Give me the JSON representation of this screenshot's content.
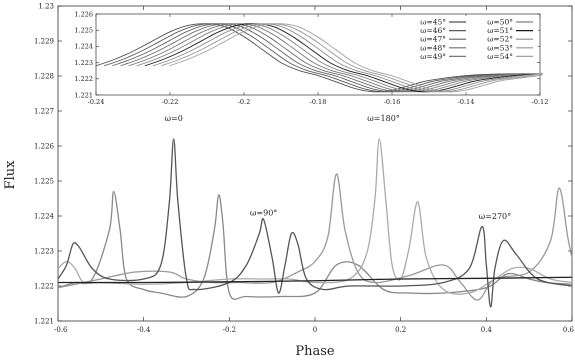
{
  "chart_data": [
    {
      "type": "line",
      "xlabel": "Phase",
      "ylabel": "Flux",
      "xlim": [
        -0.6,
        0.6
      ],
      "ylim": [
        1.221,
        1.23
      ],
      "xticks": [
        "-0.6",
        "-0.4",
        "-0.2",
        "0",
        "0.2",
        "0.4",
        "0.6"
      ],
      "yticks": [
        "1.221",
        "1.222",
        "1.223",
        "1.224",
        "1.225",
        "1.226",
        "1.227",
        "1.228",
        "1.229",
        "1.23"
      ],
      "grid": false,
      "annotations": [
        {
          "text": "ω=0",
          "x": -0.33,
          "y": 1.2266
        },
        {
          "text": "ω=90°",
          "x": -0.12,
          "y": 1.2239
        },
        {
          "text": "ω=180°",
          "x": 0.16,
          "y": 1.2266
        },
        {
          "text": "ω=270°",
          "x": 0.42,
          "y": 1.2238
        }
      ],
      "series": [
        {
          "color": "#888888",
          "values": [
            [
              -0.6,
              1.22195
            ],
            [
              -0.56,
              1.2221
            ],
            [
              -0.52,
              1.2222
            ],
            [
              -0.48,
              1.2236
            ],
            [
              -0.47,
              1.2247
            ],
            [
              -0.455,
              1.2236
            ],
            [
              -0.44,
              1.2222
            ],
            [
              -0.4,
              1.2219
            ],
            [
              -0.36,
              1.2218
            ],
            [
              -0.3,
              1.2217
            ],
            [
              -0.26,
              1.2222
            ],
            [
              -0.235,
              1.2236
            ],
            [
              -0.225,
              1.2246
            ],
            [
              -0.215,
              1.2238
            ],
            [
              -0.2,
              1.2218
            ],
            [
              -0.16,
              1.2217
            ],
            [
              -0.08,
              1.2217
            ],
            [
              0.0,
              1.2218
            ],
            [
              0.05,
              1.2226
            ],
            [
              0.1,
              1.2226
            ],
            [
              0.16,
              1.2219
            ],
            [
              0.22,
              1.2218
            ],
            [
              0.3,
              1.2218
            ],
            [
              0.4,
              1.22195
            ],
            [
              0.45,
              1.22235
            ],
            [
              0.5,
              1.2222
            ],
            [
              0.54,
              1.2221
            ],
            [
              0.6,
              1.22205
            ]
          ]
        },
        {
          "color": "#999999",
          "values": [
            [
              -0.6,
              1.22195
            ],
            [
              -0.5,
              1.2222
            ],
            [
              -0.42,
              1.2224
            ],
            [
              -0.34,
              1.2224
            ],
            [
              -0.3,
              1.2222
            ],
            [
              -0.24,
              1.2221
            ],
            [
              -0.18,
              1.2221
            ],
            [
              -0.1,
              1.2221
            ],
            [
              -0.04,
              1.2224
            ],
            [
              0.0,
              1.2227
            ],
            [
              0.03,
              1.2234
            ],
            [
              0.05,
              1.2252
            ],
            [
              0.07,
              1.2236
            ],
            [
              0.1,
              1.2224
            ],
            [
              0.14,
              1.2221
            ],
            [
              0.22,
              1.2223
            ],
            [
              0.3,
              1.2226
            ],
            [
              0.34,
              1.2221
            ],
            [
              0.38,
              1.2216
            ],
            [
              0.42,
              1.2222
            ],
            [
              0.5,
              1.2224
            ],
            [
              0.55,
              1.2233
            ],
            [
              0.57,
              1.2248
            ],
            [
              0.59,
              1.2234
            ],
            [
              0.6,
              1.2228
            ]
          ]
        },
        {
          "color": "#aaaaaa",
          "values": [
            [
              -0.6,
              1.2225
            ],
            [
              -0.58,
              1.2227
            ],
            [
              -0.56,
              1.2225
            ],
            [
              -0.54,
              1.2221
            ],
            [
              -0.5,
              1.2221
            ],
            [
              -0.4,
              1.22205
            ],
            [
              -0.3,
              1.2221
            ],
            [
              -0.2,
              1.2222
            ],
            [
              -0.12,
              1.2222
            ],
            [
              -0.06,
              1.2222
            ],
            [
              0.0,
              1.2221
            ],
            [
              0.08,
              1.2222
            ],
            [
              0.12,
              1.2229
            ],
            [
              0.14,
              1.2245
            ],
            [
              0.15,
              1.2262
            ],
            [
              0.165,
              1.2245
            ],
            [
              0.18,
              1.2226
            ],
            [
              0.2,
              1.2222
            ],
            [
              0.22,
              1.2231
            ],
            [
              0.24,
              1.2244
            ],
            [
              0.26,
              1.2228
            ],
            [
              0.3,
              1.2219
            ],
            [
              0.36,
              1.2218
            ],
            [
              0.42,
              1.2222
            ],
            [
              0.46,
              1.2225
            ],
            [
              0.5,
              1.2225
            ],
            [
              0.55,
              1.2222
            ],
            [
              0.6,
              1.2221
            ]
          ]
        },
        {
          "color": "#555555",
          "values": [
            [
              -0.6,
              1.2222
            ],
            [
              -0.58,
              1.2226
            ],
            [
              -0.565,
              1.2232
            ],
            [
              -0.55,
              1.2231
            ],
            [
              -0.52,
              1.2225
            ],
            [
              -0.48,
              1.2222
            ],
            [
              -0.4,
              1.2222
            ],
            [
              -0.36,
              1.2226
            ],
            [
              -0.34,
              1.2244
            ],
            [
              -0.33,
              1.2262
            ],
            [
              -0.32,
              1.2244
            ],
            [
              -0.3,
              1.2222
            ],
            [
              -0.28,
              1.2219
            ],
            [
              -0.2,
              1.2221
            ],
            [
              -0.16,
              1.2226
            ],
            [
              -0.13,
              1.2235
            ],
            [
              -0.12,
              1.2239
            ],
            [
              -0.1,
              1.2228
            ],
            [
              -0.085,
              1.2218
            ],
            [
              -0.07,
              1.2226
            ],
            [
              -0.055,
              1.2235
            ],
            [
              -0.04,
              1.2232
            ],
            [
              -0.02,
              1.2222
            ],
            [
              0.02,
              1.2219
            ],
            [
              0.08,
              1.222
            ],
            [
              0.2,
              1.222
            ],
            [
              0.3,
              1.2221
            ],
            [
              0.36,
              1.2225
            ],
            [
              0.39,
              1.2237
            ],
            [
              0.4,
              1.2226
            ],
            [
              0.41,
              1.2214
            ],
            [
              0.42,
              1.2225
            ],
            [
              0.44,
              1.2233
            ],
            [
              0.47,
              1.2229
            ],
            [
              0.52,
              1.2222
            ],
            [
              0.6,
              1.222
            ]
          ]
        },
        {
          "color": "#222222",
          "values": [
            [
              -0.6,
              1.2221
            ],
            [
              -0.4,
              1.2221
            ],
            [
              -0.2,
              1.22212
            ],
            [
              0.0,
              1.22215
            ],
            [
              0.2,
              1.2222
            ],
            [
              0.4,
              1.22222
            ],
            [
              0.6,
              1.22225
            ]
          ]
        }
      ]
    },
    {
      "type": "line",
      "xlim": [
        -0.24,
        -0.12
      ],
      "ylim": [
        1.221,
        1.226
      ],
      "xticks": [
        "-0.24",
        "-0.22",
        "-0.2",
        "-0.18",
        "-0.16",
        "-0.14",
        "-0.12"
      ],
      "yticks": [
        "1.221",
        "1.222",
        "1.223",
        "1.224",
        "1.225",
        "1.226"
      ],
      "legend_position": "top-right",
      "series": [
        {
          "name": "ω=45°",
          "omega": 45,
          "color": "#505050"
        },
        {
          "name": "ω=46°",
          "omega": 46,
          "color": "#5a5a5a"
        },
        {
          "name": "ω=47°",
          "omega": 47,
          "color": "#646464"
        },
        {
          "name": "ω=48°",
          "omega": 48,
          "color": "#6e6e6e"
        },
        {
          "name": "ω=49°",
          "omega": 49,
          "color": "#787878"
        },
        {
          "name": "ω=50°",
          "omega": 50,
          "color": "#828282"
        },
        {
          "name": "ω=51°",
          "omega": 51,
          "color": "#1a1a1a"
        },
        {
          "name": "ω=52°",
          "omega": 52,
          "color": "#8c8c8c"
        },
        {
          "name": "ω=53°",
          "omega": 53,
          "color": "#969696"
        },
        {
          "name": "ω=54°",
          "omega": 54,
          "color": "#a0a0a0"
        }
      ],
      "curve_template": {
        "x": [
          -0.24,
          -0.235,
          -0.23,
          -0.225,
          -0.22,
          -0.215,
          -0.21,
          -0.205,
          -0.2,
          -0.195,
          -0.19,
          -0.185,
          -0.18,
          -0.175,
          -0.17,
          -0.165,
          -0.16,
          -0.155,
          -0.15,
          -0.14,
          -0.13,
          -0.12
        ],
        "y": [
          1.2228,
          1.2232,
          1.2237,
          1.2243,
          1.2249,
          1.2253,
          1.2254,
          1.2252,
          1.2246,
          1.2238,
          1.223,
          1.2225,
          1.2222,
          1.2218,
          1.2214,
          1.2212,
          1.2213,
          1.2216,
          1.2219,
          1.2222,
          1.2223,
          1.2223
        ],
        "shift_per_degree": 0.0022
      }
    }
  ]
}
